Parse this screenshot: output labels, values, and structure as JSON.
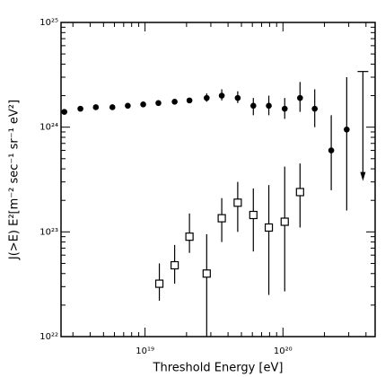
{
  "chart_data": {
    "type": "scatter",
    "xlabel": "Threshold Energy [eV]",
    "ylabel": "J(>E) E²[m⁻² sec⁻¹ sr⁻¹ eV²]",
    "xscale": "log",
    "yscale": "log",
    "xlim": [
      2.46e+18,
      4.66e+20
    ],
    "ylim": [
      1e+22,
      1e+25
    ],
    "xticks": [
      {
        "value": 1e+19,
        "label": "10¹⁹"
      },
      {
        "value": 1e+20,
        "label": "10²⁰"
      }
    ],
    "yticks": [
      {
        "value": 1e+22,
        "label": "10²²"
      },
      {
        "value": 1e+23,
        "label": "10²³"
      },
      {
        "value": 1e+24,
        "label": "10²⁴"
      },
      {
        "value": 1e+25,
        "label": "10²⁵"
      }
    ],
    "xminorticks": [
      3e+18,
      4e+18,
      5e+18,
      6e+18,
      7e+18,
      8e+18,
      9e+18,
      2e+19,
      3e+19,
      4e+19,
      5e+19,
      6e+19,
      7e+19,
      8e+19,
      9e+19,
      2e+20,
      3e+20,
      4e+20
    ],
    "yminorticks": [
      2e+22,
      3e+22,
      4e+22,
      5e+22,
      6e+22,
      7e+22,
      8e+22,
      9e+22,
      2e+23,
      3e+23,
      4e+23,
      5e+23,
      6e+23,
      7e+23,
      8e+23,
      9e+23,
      2e+24,
      3e+24,
      4e+24,
      5e+24,
      6e+24,
      7e+24,
      8e+24,
      9e+24
    ],
    "series": [
      {
        "marker": "filled-circle",
        "color": "#000000",
        "x": [
          2.6e+18,
          3.4e+18,
          4.4e+18,
          5.8e+18,
          7.5e+18,
          9.7e+18,
          1.25e+19,
          1.64e+19,
          2.1e+19,
          2.8e+19,
          3.6e+19,
          4.7e+19,
          6.1e+19,
          7.9e+19,
          1.03e+20,
          1.33e+20,
          1.7e+20,
          2.24e+20,
          2.9e+20
        ],
        "values": [
          1.4e+24,
          1.5e+24,
          1.55e+24,
          1.55e+24,
          1.6e+24,
          1.65e+24,
          1.7e+24,
          1.75e+24,
          1.8e+24,
          1.9e+24,
          2e+24,
          1.9e+24,
          1.6e+24,
          1.6e+24,
          1.5e+24,
          1.9e+24,
          1.5e+24,
          6e+23,
          9.5e+23
        ],
        "lower": [
          null,
          null,
          null,
          null,
          null,
          null,
          null,
          null,
          null,
          1.75e+24,
          1.8e+24,
          1.7e+24,
          1.3e+24,
          1.3e+24,
          1.2e+24,
          1.4e+24,
          1e+24,
          2.5e+23,
          1.6e+23
        ],
        "upper": [
          null,
          null,
          null,
          null,
          null,
          null,
          null,
          null,
          null,
          2.1e+24,
          2.3e+24,
          2.2e+24,
          1.9e+24,
          2e+24,
          1.9e+24,
          2.7e+24,
          2.3e+24,
          1.3e+24,
          3e+24
        ]
      },
      {
        "marker": "open-square",
        "color": "#000000",
        "x": [
          1.27e+19,
          1.64e+19,
          2.1e+19,
          2.8e+19,
          3.6e+19,
          4.7e+19,
          6.1e+19,
          7.9e+19,
          1.03e+20,
          1.33e+20
        ],
        "values": [
          3.2e+22,
          4.8e+22,
          9e+22,
          4e+22,
          1.35e+23,
          1.9e+23,
          1.45e+23,
          1.1e+23,
          1.25e+23,
          2.4e+23
        ],
        "lower": [
          2.2e+22,
          3.2e+22,
          6.3e+22,
          1e+22,
          8e+22,
          1e+23,
          6.5e+22,
          2.5e+22,
          2.7e+22,
          1.1e+23
        ],
        "upper": [
          5e+22,
          7.5e+22,
          1.5e+23,
          9.5e+22,
          2.1e+23,
          3e+23,
          2.6e+23,
          2.8e+23,
          4.2e+23,
          4.5e+23
        ]
      }
    ],
    "upper_limit": {
      "x": 3.8e+20,
      "value": 3.4e+24
    }
  }
}
